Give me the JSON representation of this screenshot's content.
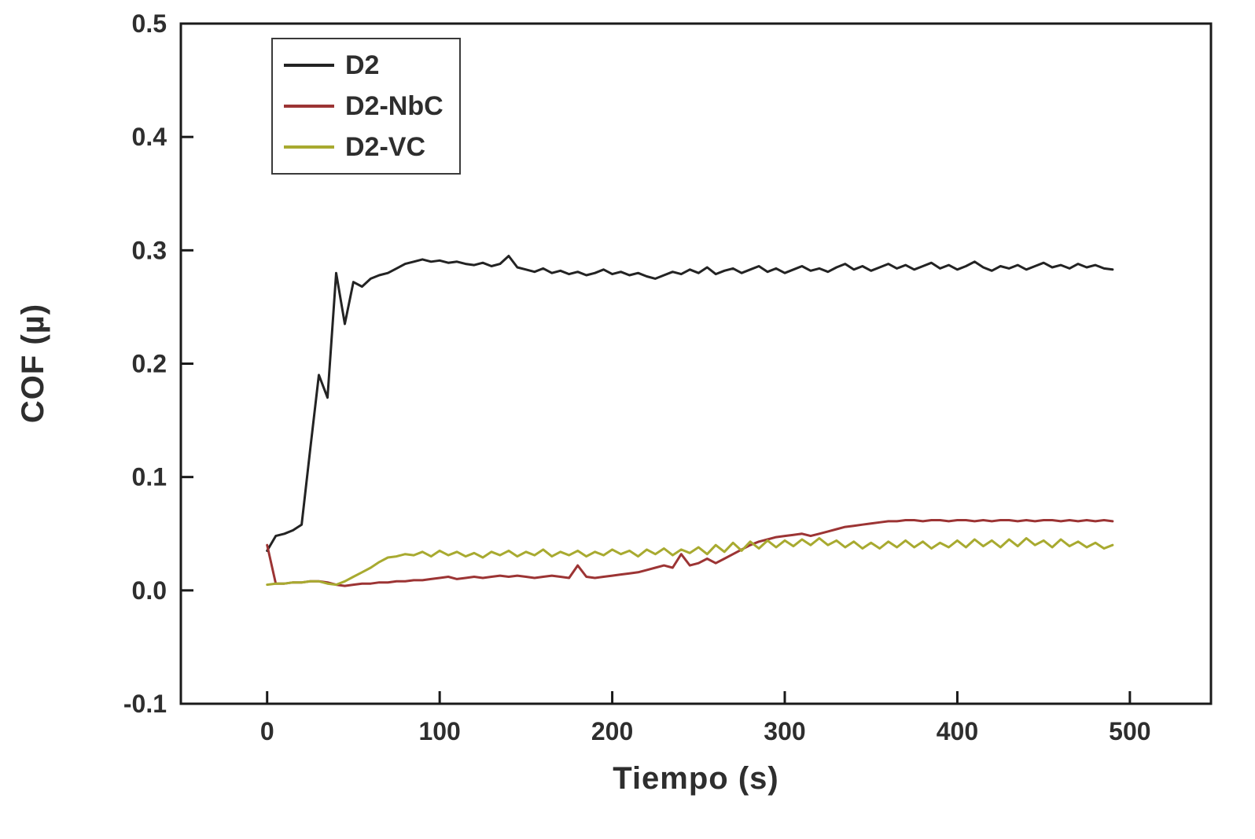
{
  "figure": {
    "background": "#ffffff",
    "text_color": "#2e2e2e",
    "frame_color": "#1a1a1a"
  },
  "chart_data": {
    "type": "line",
    "title": "",
    "xlabel": "Tiempo (s)",
    "ylabel": "COF (µ)",
    "xlim": [
      -50,
      547
    ],
    "ylim": [
      -0.1,
      0.5
    ],
    "grid": false,
    "legend_position": "top-left",
    "x_ticks": {
      "values": [
        0,
        100,
        200,
        300,
        400,
        500
      ],
      "labels": [
        "0",
        "100",
        "200",
        "300",
        "400",
        "500"
      ]
    },
    "y_ticks": {
      "values": [
        -0.1,
        0.0,
        0.1,
        0.2,
        0.3,
        0.4,
        0.5
      ],
      "labels": [
        "-0.1",
        "0.0",
        "0.1",
        "0.2",
        "0.3",
        "0.4",
        "0.5"
      ]
    },
    "x": [
      0,
      5,
      10,
      15,
      20,
      25,
      30,
      35,
      40,
      45,
      50,
      55,
      60,
      65,
      70,
      75,
      80,
      85,
      90,
      95,
      100,
      105,
      110,
      115,
      120,
      125,
      130,
      135,
      140,
      145,
      150,
      155,
      160,
      165,
      170,
      175,
      180,
      185,
      190,
      195,
      200,
      205,
      210,
      215,
      220,
      225,
      230,
      235,
      240,
      245,
      250,
      255,
      260,
      265,
      270,
      275,
      280,
      285,
      290,
      295,
      300,
      305,
      310,
      315,
      320,
      325,
      330,
      335,
      340,
      345,
      350,
      355,
      360,
      365,
      370,
      375,
      380,
      385,
      390,
      395,
      400,
      405,
      410,
      415,
      420,
      425,
      430,
      435,
      440,
      445,
      450,
      455,
      460,
      465,
      470,
      475,
      480,
      485,
      490
    ],
    "series": [
      {
        "name": "D2",
        "color": "#232323",
        "values": [
          0.035,
          0.048,
          0.05,
          0.053,
          0.058,
          0.125,
          0.19,
          0.17,
          0.28,
          0.235,
          0.272,
          0.268,
          0.275,
          0.278,
          0.28,
          0.284,
          0.288,
          0.29,
          0.292,
          0.29,
          0.291,
          0.289,
          0.29,
          0.288,
          0.287,
          0.289,
          0.286,
          0.288,
          0.295,
          0.285,
          0.283,
          0.281,
          0.284,
          0.28,
          0.282,
          0.279,
          0.281,
          0.278,
          0.28,
          0.283,
          0.279,
          0.281,
          0.278,
          0.28,
          0.277,
          0.275,
          0.278,
          0.281,
          0.279,
          0.283,
          0.28,
          0.285,
          0.279,
          0.282,
          0.284,
          0.28,
          0.283,
          0.286,
          0.281,
          0.284,
          0.28,
          0.283,
          0.286,
          0.282,
          0.284,
          0.281,
          0.285,
          0.288,
          0.283,
          0.286,
          0.282,
          0.285,
          0.288,
          0.284,
          0.287,
          0.283,
          0.286,
          0.289,
          0.284,
          0.287,
          0.283,
          0.286,
          0.29,
          0.285,
          0.282,
          0.286,
          0.284,
          0.287,
          0.283,
          0.286,
          0.289,
          0.285,
          0.287,
          0.284,
          0.288,
          0.285,
          0.287,
          0.284,
          0.283
        ]
      },
      {
        "name": "D2-NbC",
        "color": "#9c3434",
        "values": [
          0.04,
          0.006,
          0.006,
          0.007,
          0.007,
          0.008,
          0.008,
          0.007,
          0.005,
          0.004,
          0.005,
          0.006,
          0.006,
          0.007,
          0.007,
          0.008,
          0.008,
          0.009,
          0.009,
          0.01,
          0.011,
          0.012,
          0.01,
          0.011,
          0.012,
          0.011,
          0.012,
          0.013,
          0.012,
          0.013,
          0.012,
          0.011,
          0.012,
          0.013,
          0.012,
          0.011,
          0.022,
          0.012,
          0.011,
          0.012,
          0.013,
          0.014,
          0.015,
          0.016,
          0.018,
          0.02,
          0.022,
          0.02,
          0.032,
          0.022,
          0.024,
          0.028,
          0.024,
          0.028,
          0.032,
          0.036,
          0.04,
          0.043,
          0.045,
          0.047,
          0.048,
          0.049,
          0.05,
          0.048,
          0.05,
          0.052,
          0.054,
          0.056,
          0.057,
          0.058,
          0.059,
          0.06,
          0.061,
          0.061,
          0.062,
          0.062,
          0.061,
          0.062,
          0.062,
          0.061,
          0.062,
          0.062,
          0.061,
          0.062,
          0.061,
          0.062,
          0.062,
          0.061,
          0.062,
          0.061,
          0.062,
          0.062,
          0.061,
          0.062,
          0.061,
          0.062,
          0.061,
          0.062,
          0.061
        ]
      },
      {
        "name": "D2-VC",
        "color": "#a8aa30",
        "values": [
          0.005,
          0.006,
          0.006,
          0.007,
          0.007,
          0.008,
          0.008,
          0.006,
          0.005,
          0.008,
          0.012,
          0.016,
          0.02,
          0.025,
          0.029,
          0.03,
          0.032,
          0.031,
          0.034,
          0.03,
          0.035,
          0.031,
          0.034,
          0.03,
          0.033,
          0.029,
          0.034,
          0.031,
          0.035,
          0.03,
          0.034,
          0.031,
          0.036,
          0.03,
          0.034,
          0.031,
          0.035,
          0.03,
          0.034,
          0.031,
          0.036,
          0.032,
          0.035,
          0.03,
          0.036,
          0.032,
          0.037,
          0.031,
          0.036,
          0.033,
          0.038,
          0.032,
          0.04,
          0.034,
          0.042,
          0.035,
          0.043,
          0.037,
          0.044,
          0.038,
          0.044,
          0.039,
          0.045,
          0.04,
          0.046,
          0.04,
          0.044,
          0.038,
          0.043,
          0.037,
          0.042,
          0.037,
          0.043,
          0.038,
          0.044,
          0.038,
          0.043,
          0.037,
          0.042,
          0.038,
          0.044,
          0.038,
          0.045,
          0.039,
          0.044,
          0.038,
          0.045,
          0.039,
          0.046,
          0.04,
          0.044,
          0.038,
          0.045,
          0.039,
          0.043,
          0.038,
          0.042,
          0.037,
          0.04
        ]
      }
    ]
  }
}
